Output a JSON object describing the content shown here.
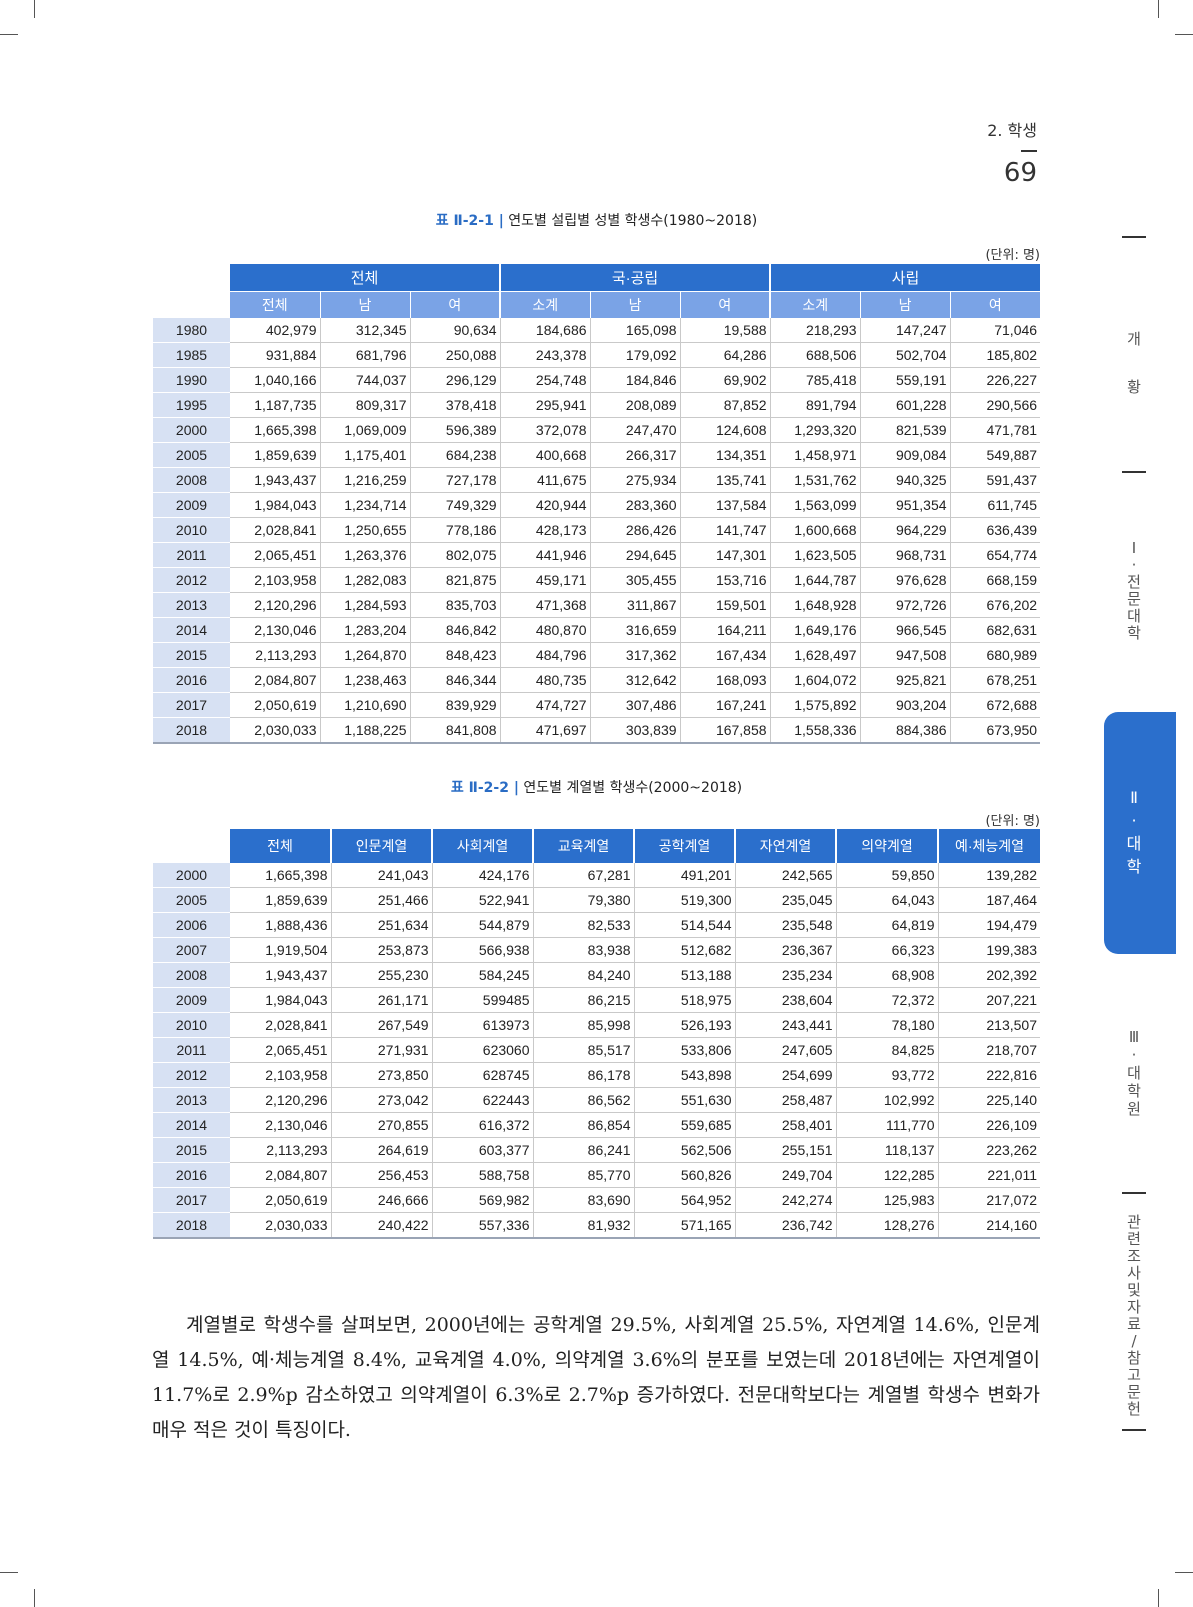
{
  "header": {
    "section": "2. 학생",
    "page": "69"
  },
  "table1": {
    "label": "표 Ⅱ-2-1 |",
    "title": "연도별 설립별 성별 학생수(1980~2018)",
    "unit": "(단위: 명)",
    "groups": [
      "전체",
      "국·공립",
      "사립"
    ],
    "subheaders": [
      "전체",
      "남",
      "여",
      "소계",
      "남",
      "여",
      "소계",
      "남",
      "여"
    ],
    "rows": [
      {
        "year": "1980",
        "cells": [
          "402,979",
          "312,345",
          "90,634",
          "184,686",
          "165,098",
          "19,588",
          "218,293",
          "147,247",
          "71,046"
        ]
      },
      {
        "year": "1985",
        "cells": [
          "931,884",
          "681,796",
          "250,088",
          "243,378",
          "179,092",
          "64,286",
          "688,506",
          "502,704",
          "185,802"
        ]
      },
      {
        "year": "1990",
        "cells": [
          "1,040,166",
          "744,037",
          "296,129",
          "254,748",
          "184,846",
          "69,902",
          "785,418",
          "559,191",
          "226,227"
        ]
      },
      {
        "year": "1995",
        "cells": [
          "1,187,735",
          "809,317",
          "378,418",
          "295,941",
          "208,089",
          "87,852",
          "891,794",
          "601,228",
          "290,566"
        ]
      },
      {
        "year": "2000",
        "cells": [
          "1,665,398",
          "1,069,009",
          "596,389",
          "372,078",
          "247,470",
          "124,608",
          "1,293,320",
          "821,539",
          "471,781"
        ]
      },
      {
        "year": "2005",
        "cells": [
          "1,859,639",
          "1,175,401",
          "684,238",
          "400,668",
          "266,317",
          "134,351",
          "1,458,971",
          "909,084",
          "549,887"
        ]
      },
      {
        "year": "2008",
        "cells": [
          "1,943,437",
          "1,216,259",
          "727,178",
          "411,675",
          "275,934",
          "135,741",
          "1,531,762",
          "940,325",
          "591,437"
        ]
      },
      {
        "year": "2009",
        "cells": [
          "1,984,043",
          "1,234,714",
          "749,329",
          "420,944",
          "283,360",
          "137,584",
          "1,563,099",
          "951,354",
          "611,745"
        ]
      },
      {
        "year": "2010",
        "cells": [
          "2,028,841",
          "1,250,655",
          "778,186",
          "428,173",
          "286,426",
          "141,747",
          "1,600,668",
          "964,229",
          "636,439"
        ]
      },
      {
        "year": "2011",
        "cells": [
          "2,065,451",
          "1,263,376",
          "802,075",
          "441,946",
          "294,645",
          "147,301",
          "1,623,505",
          "968,731",
          "654,774"
        ]
      },
      {
        "year": "2012",
        "cells": [
          "2,103,958",
          "1,282,083",
          "821,875",
          "459,171",
          "305,455",
          "153,716",
          "1,644,787",
          "976,628",
          "668,159"
        ]
      },
      {
        "year": "2013",
        "cells": [
          "2,120,296",
          "1,284,593",
          "835,703",
          "471,368",
          "311,867",
          "159,501",
          "1,648,928",
          "972,726",
          "676,202"
        ]
      },
      {
        "year": "2014",
        "cells": [
          "2,130,046",
          "1,283,204",
          "846,842",
          "480,870",
          "316,659",
          "164,211",
          "1,649,176",
          "966,545",
          "682,631"
        ]
      },
      {
        "year": "2015",
        "cells": [
          "2,113,293",
          "1,264,870",
          "848,423",
          "484,796",
          "317,362",
          "167,434",
          "1,628,497",
          "947,508",
          "680,989"
        ]
      },
      {
        "year": "2016",
        "cells": [
          "2,084,807",
          "1,238,463",
          "846,344",
          "480,735",
          "312,642",
          "168,093",
          "1,604,072",
          "925,821",
          "678,251"
        ]
      },
      {
        "year": "2017",
        "cells": [
          "2,050,619",
          "1,210,690",
          "839,929",
          "474,727",
          "307,486",
          "167,241",
          "1,575,892",
          "903,204",
          "672,688"
        ]
      },
      {
        "year": "2018",
        "cells": [
          "2,030,033",
          "1,188,225",
          "841,808",
          "471,697",
          "303,839",
          "167,858",
          "1,558,336",
          "884,386",
          "673,950"
        ]
      }
    ]
  },
  "table2": {
    "label": "표 Ⅱ-2-2 |",
    "title": "연도별 계열별 학생수(2000~2018)",
    "unit": "(단위: 명)",
    "headers": [
      "전체",
      "인문계열",
      "사회계열",
      "교육계열",
      "공학계열",
      "자연계열",
      "의약계열",
      "예·체능계열"
    ],
    "rows": [
      {
        "year": "2000",
        "cells": [
          "1,665,398",
          "241,043",
          "424,176",
          "67,281",
          "491,201",
          "242,565",
          "59,850",
          "139,282"
        ]
      },
      {
        "year": "2005",
        "cells": [
          "1,859,639",
          "251,466",
          "522,941",
          "79,380",
          "519,300",
          "235,045",
          "64,043",
          "187,464"
        ]
      },
      {
        "year": "2006",
        "cells": [
          "1,888,436",
          "251,634",
          "544,879",
          "82,533",
          "514,544",
          "235,548",
          "64,819",
          "194,479"
        ]
      },
      {
        "year": "2007",
        "cells": [
          "1,919,504",
          "253,873",
          "566,938",
          "83,938",
          "512,682",
          "236,367",
          "66,323",
          "199,383"
        ]
      },
      {
        "year": "2008",
        "cells": [
          "1,943,437",
          "255,230",
          "584,245",
          "84,240",
          "513,188",
          "235,234",
          "68,908",
          "202,392"
        ]
      },
      {
        "year": "2009",
        "cells": [
          "1,984,043",
          "261,171",
          "599485",
          "86,215",
          "518,975",
          "238,604",
          "72,372",
          "207,221"
        ]
      },
      {
        "year": "2010",
        "cells": [
          "2,028,841",
          "267,549",
          "613973",
          "85,998",
          "526,193",
          "243,441",
          "78,180",
          "213,507"
        ]
      },
      {
        "year": "2011",
        "cells": [
          "2,065,451",
          "271,931",
          "623060",
          "85,517",
          "533,806",
          "247,605",
          "84,825",
          "218,707"
        ]
      },
      {
        "year": "2012",
        "cells": [
          "2,103,958",
          "273,850",
          "628745",
          "86,178",
          "543,898",
          "254,699",
          "93,772",
          "222,816"
        ]
      },
      {
        "year": "2013",
        "cells": [
          "2,120,296",
          "273,042",
          "622443",
          "86,562",
          "551,630",
          "258,487",
          "102,992",
          "225,140"
        ]
      },
      {
        "year": "2014",
        "cells": [
          "2,130,046",
          "270,855",
          "616,372",
          "86,854",
          "559,685",
          "258,401",
          "111,770",
          "226,109"
        ]
      },
      {
        "year": "2015",
        "cells": [
          "2,113,293",
          "264,619",
          "603,377",
          "86,241",
          "562,506",
          "255,151",
          "118,137",
          "223,262"
        ]
      },
      {
        "year": "2016",
        "cells": [
          "2,084,807",
          "256,453",
          "588,758",
          "85,770",
          "560,826",
          "249,704",
          "122,285",
          "221,011"
        ]
      },
      {
        "year": "2017",
        "cells": [
          "2,050,619",
          "246,666",
          "569,982",
          "83,690",
          "564,952",
          "242,274",
          "125,983",
          "217,072"
        ]
      },
      {
        "year": "2018",
        "cells": [
          "2,030,033",
          "240,422",
          "557,336",
          "81,932",
          "571,165",
          "236,742",
          "128,276",
          "214,160"
        ]
      }
    ]
  },
  "paragraph": "계열별로 학생수를 살펴보면, 2000년에는 공학계열 29.5%, 사회계열 25.5%, 자연계열 14.6%, 인문계열 14.5%, 예·체능계열 8.4%, 교육계열 4.0%, 의약계열 3.6%의 분포를 보였는데 2018년에는 자연계열이 11.7%로 2.9%p 감소하였고 의약계열이 6.3%로 2.7%p 증가하였다. 전문대학보다는 계열별 학생수 변화가 매우 적은 것이 특징이다.",
  "side_nav": {
    "ch0": [
      "개",
      "황"
    ],
    "ch1": [
      "Ⅰ",
      "·",
      "전",
      "문",
      "대",
      "학"
    ],
    "ch2": [
      "Ⅱ",
      "·",
      "대",
      "학"
    ],
    "ch3": [
      "Ⅲ",
      "·",
      "대",
      "학",
      "원"
    ],
    "ch4": [
      "관",
      "련",
      "조",
      "사",
      "및",
      "자",
      "료",
      "/",
      "참",
      "고",
      "문",
      "헌"
    ]
  }
}
